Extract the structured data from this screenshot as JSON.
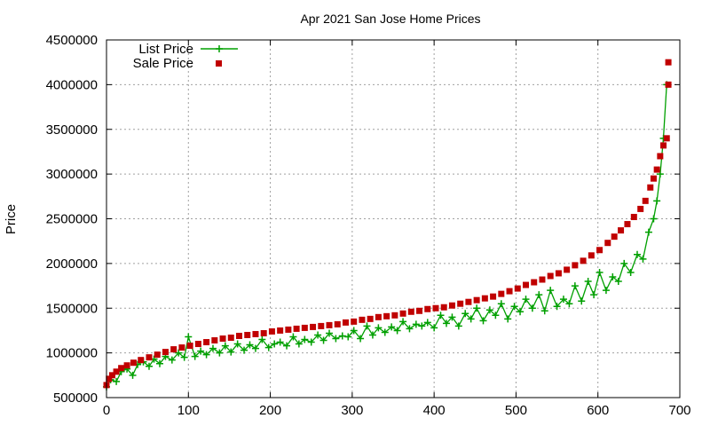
{
  "chart_data": {
    "type": "line",
    "title": "Apr 2021 San Jose Home Prices",
    "xlabel": "",
    "ylabel": "Price",
    "xlim": [
      0,
      700
    ],
    "ylim": [
      500000,
      4500000
    ],
    "x_ticks": [
      "0",
      "100",
      "200",
      "300",
      "400",
      "500",
      "600",
      "700"
    ],
    "y_ticks": [
      "500000",
      "1000000",
      "1500000",
      "2000000",
      "2500000",
      "3000000",
      "3500000",
      "4000000",
      "4500000"
    ],
    "grid": true,
    "legend_position": "top-left",
    "series": [
      {
        "name": "List Price",
        "style": "line+points",
        "color": "#00a000",
        "x": [
          0,
          5,
          12,
          18,
          25,
          32,
          38,
          45,
          52,
          58,
          65,
          72,
          80,
          88,
          95,
          100,
          108,
          115,
          122,
          130,
          138,
          145,
          152,
          160,
          168,
          175,
          182,
          190,
          198,
          205,
          212,
          220,
          228,
          235,
          242,
          250,
          258,
          265,
          272,
          280,
          288,
          295,
          302,
          310,
          318,
          325,
          332,
          340,
          348,
          355,
          362,
          370,
          378,
          385,
          392,
          400,
          408,
          415,
          422,
          430,
          438,
          445,
          452,
          460,
          468,
          475,
          482,
          490,
          498,
          505,
          512,
          520,
          528,
          535,
          542,
          550,
          558,
          565,
          572,
          580,
          588,
          595,
          602,
          610,
          618,
          625,
          632,
          640,
          648,
          655,
          662,
          668,
          672,
          676,
          680,
          684
        ],
        "y": [
          620000,
          700000,
          680000,
          790000,
          820000,
          750000,
          870000,
          900000,
          850000,
          930000,
          880000,
          960000,
          920000,
          1000000,
          950000,
          1180000,
          960000,
          1020000,
          980000,
          1050000,
          1000000,
          1080000,
          1010000,
          1100000,
          1030000,
          1090000,
          1050000,
          1150000,
          1060000,
          1100000,
          1120000,
          1080000,
          1180000,
          1100000,
          1150000,
          1120000,
          1200000,
          1140000,
          1220000,
          1160000,
          1190000,
          1180000,
          1250000,
          1160000,
          1300000,
          1200000,
          1280000,
          1230000,
          1290000,
          1250000,
          1350000,
          1270000,
          1320000,
          1300000,
          1340000,
          1280000,
          1420000,
          1330000,
          1400000,
          1300000,
          1440000,
          1380000,
          1500000,
          1360000,
          1480000,
          1420000,
          1550000,
          1380000,
          1520000,
          1460000,
          1600000,
          1500000,
          1650000,
          1470000,
          1700000,
          1520000,
          1600000,
          1550000,
          1750000,
          1580000,
          1800000,
          1650000,
          1900000,
          1700000,
          1850000,
          1800000,
          2000000,
          1900000,
          2100000,
          2050000,
          2350000,
          2500000,
          2700000,
          3000000,
          3400000,
          4000000
        ]
      },
      {
        "name": "Sale Price",
        "style": "points",
        "color": "#c00000",
        "x": [
          0,
          3,
          7,
          12,
          18,
          25,
          33,
          42,
          52,
          62,
          72,
          82,
          92,
          102,
          112,
          122,
          132,
          142,
          152,
          162,
          172,
          182,
          192,
          202,
          212,
          222,
          232,
          242,
          252,
          262,
          272,
          282,
          292,
          302,
          312,
          322,
          332,
          342,
          352,
          362,
          372,
          382,
          392,
          402,
          412,
          422,
          432,
          442,
          452,
          462,
          472,
          482,
          492,
          502,
          512,
          522,
          532,
          542,
          552,
          562,
          572,
          582,
          592,
          602,
          612,
          620,
          628,
          636,
          644,
          652,
          658,
          664,
          668,
          672,
          676,
          680,
          684,
          686,
          686
        ],
        "y": [
          640000,
          710000,
          750000,
          790000,
          830000,
          860000,
          890000,
          920000,
          950000,
          980000,
          1010000,
          1040000,
          1060000,
          1080000,
          1100000,
          1120000,
          1140000,
          1160000,
          1170000,
          1190000,
          1200000,
          1210000,
          1220000,
          1240000,
          1250000,
          1260000,
          1270000,
          1280000,
          1290000,
          1300000,
          1310000,
          1320000,
          1340000,
          1350000,
          1370000,
          1380000,
          1400000,
          1410000,
          1420000,
          1440000,
          1460000,
          1470000,
          1490000,
          1500000,
          1510000,
          1530000,
          1550000,
          1570000,
          1590000,
          1610000,
          1630000,
          1660000,
          1690000,
          1720000,
          1760000,
          1790000,
          1820000,
          1860000,
          1890000,
          1930000,
          1980000,
          2030000,
          2090000,
          2150000,
          2230000,
          2300000,
          2370000,
          2440000,
          2520000,
          2610000,
          2700000,
          2850000,
          2950000,
          3050000,
          3200000,
          3320000,
          3400000,
          4000000,
          4250000
        ]
      }
    ]
  }
}
